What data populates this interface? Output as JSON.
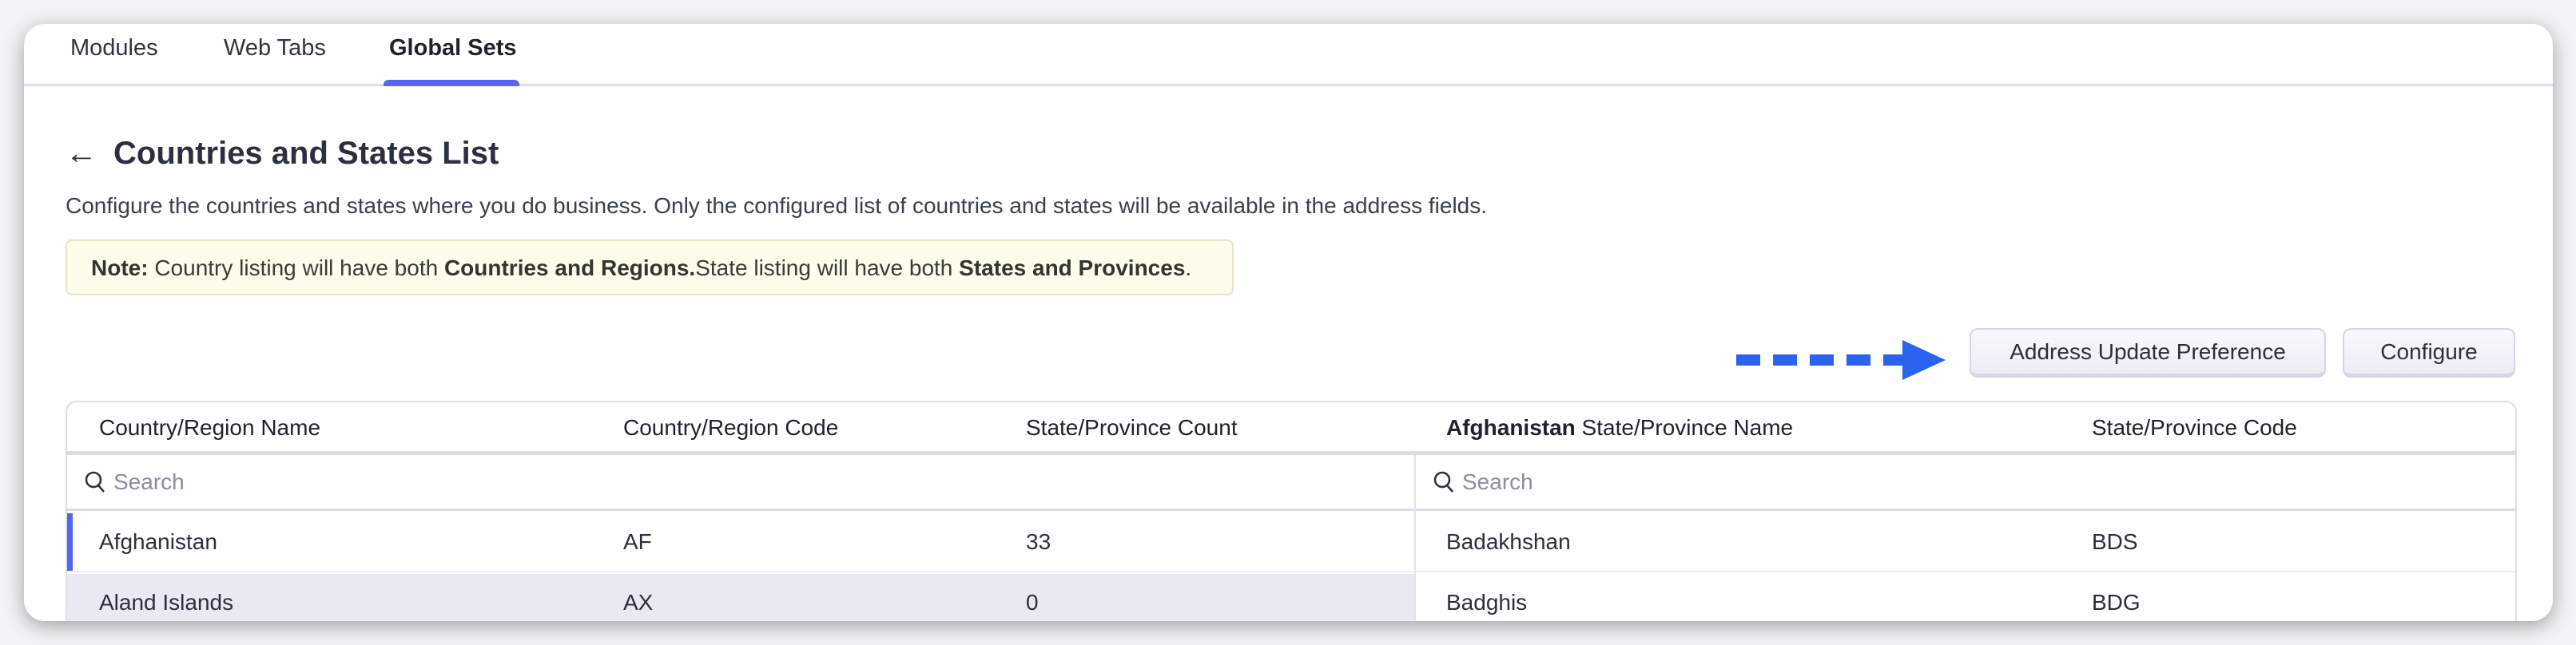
{
  "tabs": [
    {
      "label": "Modules"
    },
    {
      "label": "Web Tabs"
    },
    {
      "label": "Global Sets",
      "active": true
    }
  ],
  "page": {
    "title": "Countries and States List",
    "description": "Configure the countries and states where you do business. Only the configured list of countries and states will be available in the address fields.",
    "note": {
      "prefix": "Note:",
      "t1": " Country listing will have both ",
      "b1": "Countries and Regions.",
      "t2": "State listing will have both ",
      "b2": "States and Provinces",
      "t3": "."
    }
  },
  "buttons": {
    "address_update": "Address Update Preference",
    "configure": "Configure"
  },
  "colors": {
    "accent": "#5566ee",
    "arrow": "#2b63f0",
    "selected_row": "#e9e9f3"
  },
  "table": {
    "headers": {
      "country_name": "Country/Region Name",
      "country_code": "Country/Region Code",
      "state_count": "State/Province Count",
      "state_name_bold": "Afghanistan",
      "state_name": " State/Province Name",
      "state_code": "State/Province Code"
    },
    "search_placeholder": "Search",
    "countries": [
      {
        "name": "Afghanistan",
        "code": "AF",
        "count": "33"
      },
      {
        "name": "Aland Islands",
        "code": "AX",
        "count": "0"
      }
    ],
    "states": [
      {
        "name": "Badakhshan",
        "code": "BDS"
      },
      {
        "name": "Badghis",
        "code": "BDG"
      }
    ]
  }
}
